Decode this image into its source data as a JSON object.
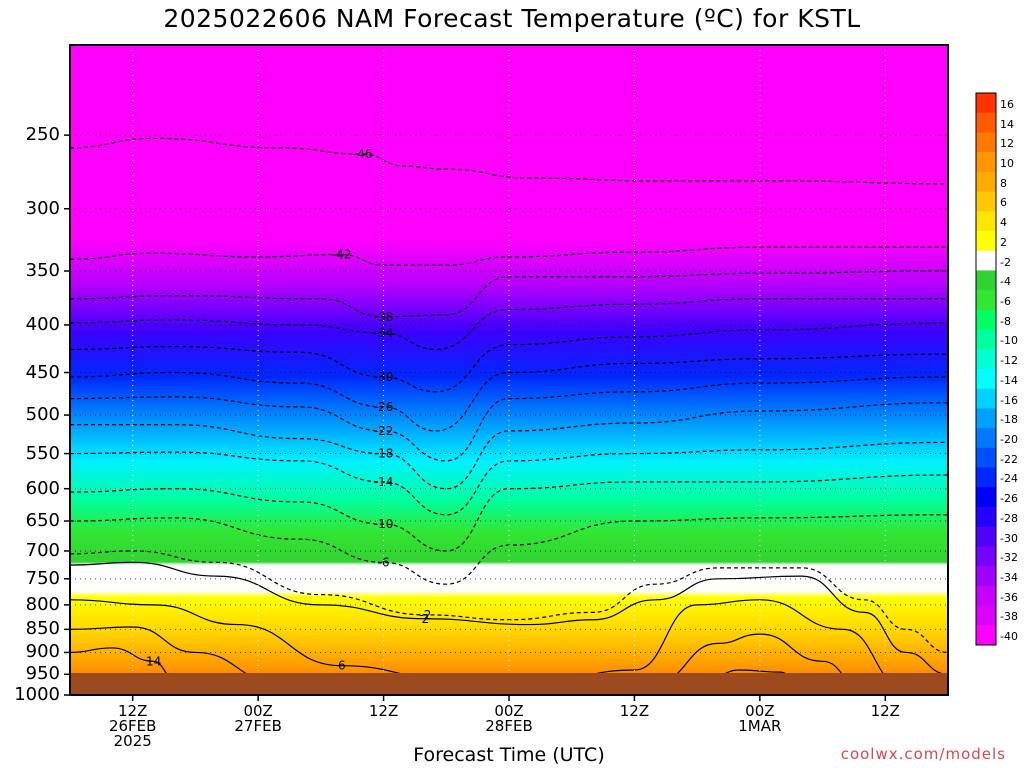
{
  "chart_data": {
    "type": "heatmap",
    "title": "2025022606 NAM Forecast Temperature (ºC) for KSTL",
    "xlabel": "Forecast Time (UTC)",
    "ylabel": "",
    "credit": "coolwx.com/models",
    "y_axis": {
      "scale": "log",
      "inverted": true,
      "range_hPa": [
        1000,
        200
      ],
      "ticks": [
        250,
        300,
        350,
        400,
        450,
        500,
        550,
        600,
        650,
        700,
        750,
        800,
        850,
        900,
        950,
        1000
      ]
    },
    "x_axis": {
      "range_hours": [
        0,
        84
      ],
      "ticks": [
        {
          "hour": 6,
          "label1": "12Z",
          "label2": "26FEB",
          "label3": "2025"
        },
        {
          "hour": 18,
          "label1": "00Z",
          "label2": "27FEB",
          "label3": ""
        },
        {
          "hour": 30,
          "label1": "12Z",
          "label2": "",
          "label3": ""
        },
        {
          "hour": 42,
          "label1": "00Z",
          "label2": "28FEB",
          "label3": ""
        },
        {
          "hour": 54,
          "label1": "12Z",
          "label2": "",
          "label3": ""
        },
        {
          "hour": 66,
          "label1": "00Z",
          "label2": "1MAR",
          "label3": ""
        },
        {
          "hour": 78,
          "label1": "12Z",
          "label2": "",
          "label3": ""
        }
      ]
    },
    "colorbar": {
      "labels": [
        16,
        14,
        12,
        10,
        8,
        6,
        4,
        2,
        -2,
        -4,
        -6,
        -8,
        -10,
        -12,
        -14,
        -16,
        -18,
        -20,
        -22,
        -24,
        -26,
        -28,
        -30,
        -32,
        -34,
        -36,
        -38,
        -40
      ],
      "colors": [
        "#ff3200",
        "#ff5a00",
        "#ff7800",
        "#ff9600",
        "#ffaa00",
        "#ffc800",
        "#ffe600",
        "#ffff00",
        "#ffffff",
        "#32d232",
        "#32e632",
        "#00ff64",
        "#00ffa0",
        "#00ffd2",
        "#00ffff",
        "#00d2ff",
        "#00a0ff",
        "#0078ff",
        "#0050ff",
        "#0028ff",
        "#0000ff",
        "#2800ff",
        "#5000ff",
        "#7800ff",
        "#a000ff",
        "#c800ff",
        "#dc00ff",
        "#ff00ff"
      ]
    },
    "isotherms": [
      {
        "temp": -46,
        "points": [
          [
            0,
            258
          ],
          [
            8,
            252
          ],
          [
            20,
            258
          ],
          [
            28,
            262
          ],
          [
            32,
            270
          ],
          [
            36,
            272
          ],
          [
            44,
            278
          ],
          [
            56,
            280
          ],
          [
            68,
            280
          ],
          [
            84,
            282
          ]
        ]
      },
      {
        "temp": -42,
        "points": [
          [
            0,
            340
          ],
          [
            8,
            335
          ],
          [
            18,
            338
          ],
          [
            26,
            336
          ],
          [
            30,
            345
          ],
          [
            36,
            345
          ],
          [
            42,
            338
          ],
          [
            54,
            334
          ],
          [
            66,
            330
          ],
          [
            84,
            330
          ]
        ]
      },
      {
        "temp": -38,
        "points": [
          [
            0,
            375
          ],
          [
            10,
            372
          ],
          [
            24,
            375
          ],
          [
            30,
            392
          ],
          [
            36,
            390
          ],
          [
            42,
            355
          ],
          [
            54,
            355
          ],
          [
            66,
            352
          ],
          [
            84,
            350
          ]
        ]
      },
      {
        "temp": -34,
        "points": [
          [
            0,
            398
          ],
          [
            10,
            395
          ],
          [
            22,
            400
          ],
          [
            30,
            408
          ],
          [
            35,
            425
          ],
          [
            42,
            385
          ],
          [
            54,
            380
          ],
          [
            66,
            375
          ],
          [
            84,
            375
          ]
        ]
      },
      {
        "temp": -30,
        "points": [
          [
            0,
            425
          ],
          [
            10,
            422
          ],
          [
            22,
            428
          ],
          [
            30,
            455
          ],
          [
            35,
            472
          ],
          [
            42,
            420
          ],
          [
            54,
            412
          ],
          [
            66,
            405
          ],
          [
            84,
            398
          ]
        ]
      },
      {
        "temp": -26,
        "points": [
          [
            0,
            455
          ],
          [
            10,
            450
          ],
          [
            22,
            462
          ],
          [
            30,
            490
          ],
          [
            35,
            520
          ],
          [
            42,
            450
          ],
          [
            54,
            440
          ],
          [
            66,
            435
          ],
          [
            84,
            430
          ]
        ]
      },
      {
        "temp": -22,
        "points": [
          [
            0,
            480
          ],
          [
            10,
            478
          ],
          [
            22,
            490
          ],
          [
            30,
            520
          ],
          [
            36,
            560
          ],
          [
            42,
            480
          ],
          [
            54,
            472
          ],
          [
            66,
            462
          ],
          [
            84,
            455
          ]
        ]
      },
      {
        "temp": -18,
        "points": [
          [
            0,
            512
          ],
          [
            10,
            512
          ],
          [
            22,
            530
          ],
          [
            30,
            550
          ],
          [
            36,
            600
          ],
          [
            42,
            520
          ],
          [
            54,
            510
          ],
          [
            66,
            495
          ],
          [
            84,
            485
          ]
        ]
      },
      {
        "temp": -14,
        "points": [
          [
            0,
            550
          ],
          [
            10,
            548
          ],
          [
            22,
            560
          ],
          [
            30,
            590
          ],
          [
            36,
            640
          ],
          [
            42,
            560
          ],
          [
            54,
            550
          ],
          [
            66,
            545
          ],
          [
            84,
            535
          ]
        ]
      },
      {
        "temp": -10,
        "points": [
          [
            0,
            605
          ],
          [
            10,
            600
          ],
          [
            22,
            620
          ],
          [
            30,
            655
          ],
          [
            36,
            700
          ],
          [
            42,
            600
          ],
          [
            54,
            590
          ],
          [
            66,
            590
          ],
          [
            84,
            580
          ]
        ]
      },
      {
        "temp": -6,
        "points": [
          [
            0,
            650
          ],
          [
            10,
            645
          ],
          [
            22,
            680
          ],
          [
            30,
            720
          ],
          [
            36,
            760
          ],
          [
            42,
            690
          ],
          [
            54,
            650
          ],
          [
            66,
            645
          ],
          [
            84,
            640
          ]
        ]
      },
      {
        "temp": -2,
        "points": [
          [
            0,
            705
          ],
          [
            6,
            700
          ],
          [
            14,
            720
          ],
          [
            24,
            780
          ],
          [
            34,
            820
          ],
          [
            42,
            830
          ],
          [
            50,
            815
          ],
          [
            56,
            760
          ],
          [
            62,
            730
          ],
          [
            70,
            730
          ],
          [
            76,
            790
          ],
          [
            80,
            850
          ],
          [
            84,
            900
          ]
        ]
      },
      {
        "temp": 2,
        "points": [
          [
            0,
            725
          ],
          [
            6,
            720
          ],
          [
            14,
            745
          ],
          [
            24,
            800
          ],
          [
            34,
            828
          ],
          [
            44,
            840
          ],
          [
            50,
            830
          ],
          [
            56,
            790
          ],
          [
            62,
            750
          ],
          [
            70,
            745
          ],
          [
            76,
            815
          ],
          [
            80,
            900
          ],
          [
            84,
            950
          ]
        ]
      },
      {
        "temp": 6,
        "points": [
          [
            0,
            790
          ],
          [
            8,
            800
          ],
          [
            16,
            840
          ],
          [
            26,
            930
          ],
          [
            36,
            960
          ],
          [
            46,
            960
          ],
          [
            54,
            940
          ],
          [
            60,
            800
          ],
          [
            66,
            790
          ],
          [
            74,
            850
          ],
          [
            80,
            985
          ]
        ]
      },
      {
        "temp": 10,
        "points": [
          [
            0,
            850
          ],
          [
            6,
            845
          ],
          [
            12,
            900
          ],
          [
            20,
            970
          ],
          [
            56,
            970
          ],
          [
            62,
            880
          ],
          [
            66,
            860
          ],
          [
            72,
            920
          ],
          [
            76,
            990
          ]
        ]
      },
      {
        "temp": 14,
        "points": [
          [
            0,
            900
          ],
          [
            4,
            890
          ],
          [
            8,
            920
          ],
          [
            10,
            960
          ],
          [
            60,
            985
          ],
          [
            64,
            940
          ],
          [
            68,
            945
          ],
          [
            70,
            990
          ]
        ]
      }
    ]
  }
}
